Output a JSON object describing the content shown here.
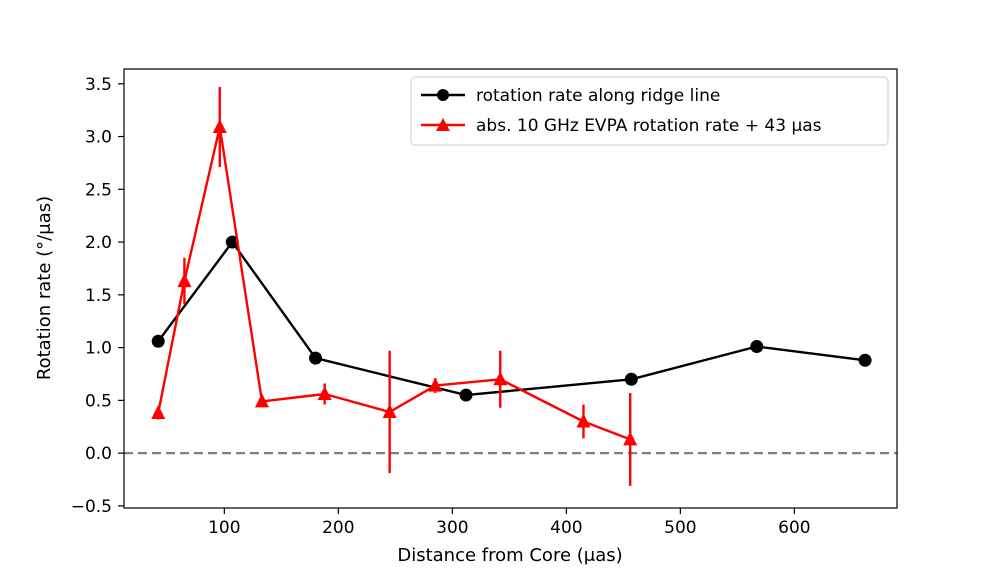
{
  "chart_data": {
    "type": "line",
    "title": "",
    "xlabel": "Distance from Core (μas)",
    "ylabel": "Rotation rate (°/μas)",
    "xlim": [
      12,
      690
    ],
    "ylim": [
      -0.52,
      3.64
    ],
    "xticks": [
      100,
      200,
      300,
      400,
      500,
      600
    ],
    "xtick_labels": [
      "100",
      "200",
      "300",
      "400",
      "500",
      "600"
    ],
    "yticks": [
      -0.5,
      0.0,
      0.5,
      1.0,
      1.5,
      2.0,
      2.5,
      3.0,
      3.5
    ],
    "ytick_labels": [
      "−0.5",
      "0.0",
      "0.5",
      "1.0",
      "1.5",
      "2.0",
      "2.5",
      "3.0",
      "3.5"
    ],
    "hline": {
      "y": 0.0,
      "style": "dashed",
      "color": "#808080"
    },
    "legend_position": "top-right",
    "series": [
      {
        "name": "rotation rate along ridge line",
        "color": "#000000",
        "marker": "circle",
        "x": [
          42,
          107,
          180,
          312,
          457,
          567,
          662
        ],
        "y": [
          1.06,
          2.0,
          0.9,
          0.55,
          0.7,
          1.01,
          0.88
        ]
      },
      {
        "name": "abs. 10 GHz EVPA rotation rate + 43 μas",
        "color": "#ff0000",
        "marker": "triangle",
        "x": [
          42,
          65,
          96,
          133,
          188,
          245,
          285,
          342,
          415,
          456
        ],
        "y": [
          0.38,
          1.63,
          3.09,
          0.49,
          0.56,
          0.39,
          0.64,
          0.7,
          0.3,
          0.13
        ],
        "yerr": [
          0.06,
          0.22,
          0.38,
          0.04,
          0.1,
          0.58,
          0.07,
          0.27,
          0.16,
          0.44
        ]
      }
    ]
  }
}
